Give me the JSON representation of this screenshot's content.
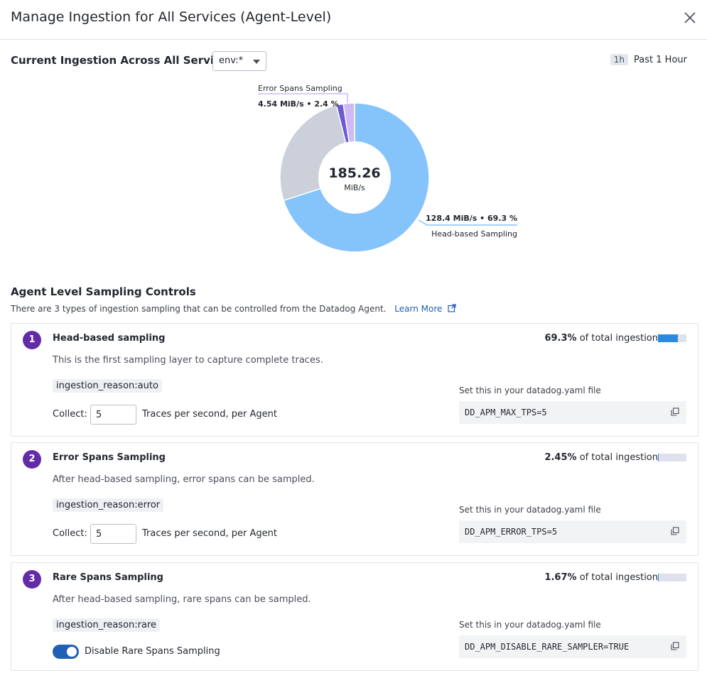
{
  "dialog": {
    "title": "Manage Ingestion for All Services (Agent-Level)",
    "close_icon": "close-icon"
  },
  "overview": {
    "title": "Current Ingestion Across All Services",
    "env_filter": "env:*",
    "time_badge": "1h",
    "time_label": "Past 1 Hour"
  },
  "chart_data": {
    "type": "pie",
    "center_value": "185.26",
    "center_unit": "MiB/s",
    "slices": [
      {
        "name": "Head-based Sampling",
        "value_text": "128.4 MiB/s • 69.3 %",
        "percent": 69.3,
        "color": "#85c3fb"
      },
      {
        "name": "",
        "value_text": "",
        "percent": 25.8,
        "color": "#cbd0da"
      },
      {
        "name": "",
        "value_text": "",
        "percent": 1.5,
        "color": "#6d5bd0"
      },
      {
        "name": "Error Spans Sampling",
        "value_text": "4.54 MiB/s • 2.4 %",
        "percent": 2.4,
        "color": "#cfbaf5"
      }
    ]
  },
  "controls": {
    "title": "Agent Level Sampling Controls",
    "intro": "There are 3 types of ingestion sampling that can be controlled from the Datadog Agent.",
    "learn_more": "Learn More",
    "cards": [
      {
        "number": "1",
        "title": "Head-based sampling",
        "description": "This is the first sampling layer to capture complete traces.",
        "tag": "ingestion_reason:auto",
        "pct_value": "69.3%",
        "pct_suffix": "of total ingestion",
        "fraction": 0.693,
        "collect_label": "Collect:",
        "collect_value": "5",
        "collect_suffix": "Traces per second, per Agent",
        "yaml_hint": "Set this in your datadog.yaml file",
        "config": "DD_APM_MAX_TPS=5"
      },
      {
        "number": "2",
        "title": "Error Spans Sampling",
        "description": "After head-based sampling, error spans can be sampled.",
        "tag": "ingestion_reason:error",
        "pct_value": "2.45%",
        "pct_suffix": "of total ingestion",
        "fraction": 0.0245,
        "collect_label": "Collect:",
        "collect_value": "5",
        "collect_suffix": "Traces per second, per Agent",
        "yaml_hint": "Set this in your datadog.yaml file",
        "config": "DD_APM_ERROR_TPS=5"
      },
      {
        "number": "3",
        "title": "Rare Spans Sampling",
        "description": "After head-based sampling, rare spans can be sampled.",
        "tag": "ingestion_reason:rare",
        "pct_value": "1.67%",
        "pct_suffix": "of total ingestion",
        "fraction": 0.0167,
        "toggle_label": "Disable Rare Spans Sampling",
        "toggle_on": true,
        "yaml_hint": "Set this in your datadog.yaml file",
        "config": "DD_APM_DISABLE_RARE_SAMPLER=TRUE"
      }
    ]
  }
}
